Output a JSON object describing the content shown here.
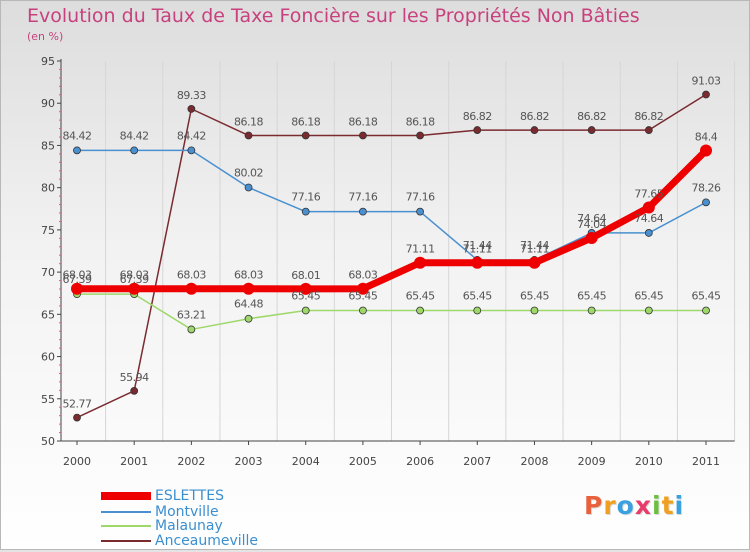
{
  "chart_data": {
    "type": "line",
    "title": "Evolution du Taux de Taxe Foncière sur les Propriétés Non Bâties",
    "subtitle": "(en %)",
    "x": [
      "2000",
      "2001",
      "2002",
      "2003",
      "2004",
      "2005",
      "2006",
      "2007",
      "2008",
      "2009",
      "2010",
      "2011"
    ],
    "ylim": [
      50,
      95
    ],
    "yticks": [
      "50",
      "55",
      "60",
      "65",
      "70",
      "75",
      "80",
      "85",
      "90",
      "95"
    ],
    "grid": "vertical",
    "legend_position": "bottom-left",
    "series": [
      {
        "name": "ESLETTES",
        "color": "#ee0000",
        "values": [
          68.03,
          68.03,
          68.03,
          68.03,
          68.01,
          68.03,
          71.11,
          71.11,
          71.11,
          74.04,
          77.65,
          84.4
        ],
        "labels": [
          "68.03",
          "68.03",
          "68.03",
          "68.03",
          "68.01",
          "68.03",
          "71.11",
          "71.11",
          "71.11",
          "74.04",
          "77.65",
          "84.4"
        ]
      },
      {
        "name": "Montville",
        "color": "#4a90d0",
        "values": [
          84.42,
          84.42,
          84.42,
          80.02,
          77.16,
          77.16,
          77.16,
          71.44,
          71.44,
          74.64,
          74.64,
          78.26
        ],
        "labels": [
          "84.42",
          "84.42",
          "84.42",
          "80.02",
          "77.16",
          "77.16",
          "77.16",
          "71.44",
          "71.44",
          "74.64",
          "74.64",
          "78.26"
        ]
      },
      {
        "name": "Malaunay",
        "color": "#9ed86a",
        "values": [
          67.39,
          67.39,
          63.21,
          64.48,
          65.45,
          65.45,
          65.45,
          65.45,
          65.45,
          65.45,
          65.45,
          65.45
        ],
        "labels": [
          "67.39",
          "67.39",
          "63.21",
          "64.48",
          "65.45",
          "65.45",
          "65.45",
          "65.45",
          "65.45",
          "65.45",
          "65.45",
          "65.45"
        ]
      },
      {
        "name": "Anceaumeville",
        "color": "#7a2b30",
        "values": [
          52.77,
          55.94,
          89.33,
          86.18,
          86.18,
          86.18,
          86.18,
          86.82,
          86.82,
          86.82,
          86.82,
          91.03
        ],
        "labels": [
          "52.77",
          "55.94",
          "89.33",
          "86.18",
          "86.18",
          "86.18",
          "86.18",
          "86.82",
          "86.82",
          "86.82",
          "86.82",
          "91.03"
        ]
      }
    ]
  },
  "logo": {
    "text": "Proxiti",
    "colors": [
      "#e8603c",
      "#f0a020",
      "#3aa0e0",
      "#e83c6a",
      "#6cc040",
      "#f0a020",
      "#3aa0e0"
    ]
  }
}
